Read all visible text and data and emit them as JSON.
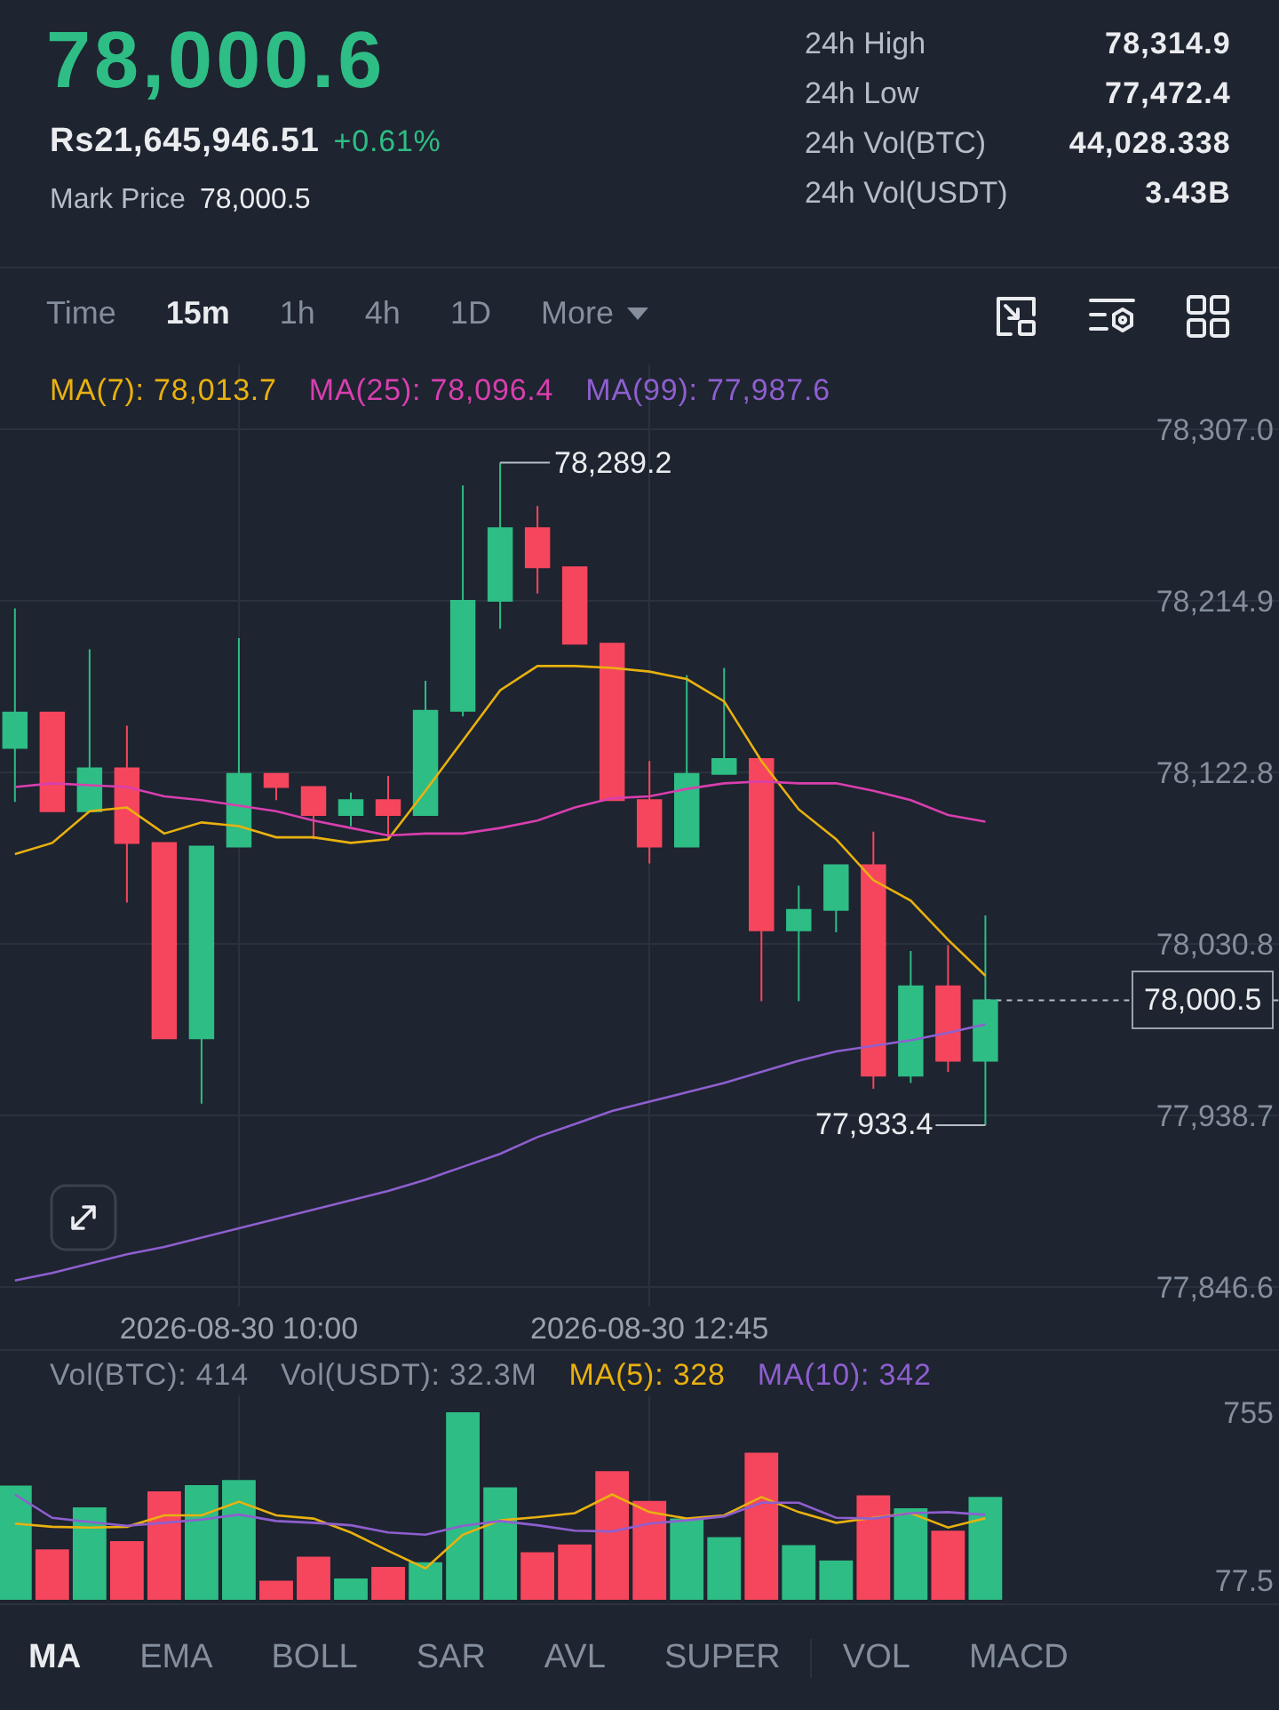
{
  "chart_data": [
    {
      "type": "other",
      "title": "78,000.6",
      "annotations": [
        "Rs21,645,946.51",
        "+0.61%",
        "Mark Price",
        "78,000.5",
        "24h High",
        "78,314.9",
        "24h Low",
        "77,472.4",
        "24h Vol(BTC)",
        "44,028.338",
        "24h Vol(USDT)",
        "3.43B",
        "Time",
        "15m",
        "1h",
        "4h",
        "1D",
        "More"
      ]
    },
    {
      "type": "candlestick",
      "x": [
        "2026-08-30T08:30",
        "2026-08-30T08:45",
        "2026-08-30T09:00",
        "2026-08-30T09:15",
        "2026-08-30T09:30",
        "2026-08-30T09:45",
        "2026-08-30T10:00",
        "2026-08-30T10:15",
        "2026-08-30T10:30",
        "2026-08-30T10:45",
        "2026-08-30T11:00",
        "2026-08-30T11:15",
        "2026-08-30T11:30",
        "2026-08-30T11:45",
        "2026-08-30T12:00",
        "2026-08-30T12:15",
        "2026-08-30T12:30",
        "2026-08-30T12:45",
        "2026-08-30T13:00",
        "2026-08-30T13:15",
        "2026-08-30T13:30",
        "2026-08-30T13:45",
        "2026-08-30T14:00",
        "2026-08-30T14:15",
        "2026-08-30T14:30",
        "2026-08-30T14:45",
        "2026-08-30T15:00"
      ],
      "ohlc": [
        [
          78136,
          78211,
          78107,
          78155
        ],
        [
          78155,
          78155,
          78102,
          78102
        ],
        [
          78102,
          78189,
          78102,
          78125
        ],
        [
          78125,
          78148,
          78053,
          78085
        ],
        [
          78085,
          78085,
          77980,
          77980
        ],
        [
          77980,
          78083,
          77945,
          78083
        ],
        [
          78083,
          78195,
          78083,
          78122
        ],
        [
          78122,
          78122,
          78108,
          78115
        ],
        [
          78115,
          78115,
          78087,
          78100
        ],
        [
          78100,
          78112,
          78094,
          78108
        ],
        [
          78108,
          78121,
          78087,
          78100
        ],
        [
          78100,
          78172,
          78100,
          78156
        ],
        [
          78156,
          78277,
          78153,
          78215
        ],
        [
          78215,
          78289.2,
          78200,
          78254
        ],
        [
          78254,
          78266,
          78219,
          78233
        ],
        [
          78233,
          78233,
          78192,
          78192
        ],
        [
          78192,
          78192,
          78108,
          78108
        ],
        [
          78108,
          78129,
          78074,
          78083
        ],
        [
          78083,
          78175,
          78083,
          78122
        ],
        [
          78122,
          78179,
          78122,
          78130
        ],
        [
          78130,
          78130,
          78000,
          78038
        ],
        [
          78038,
          78062,
          78000,
          78049
        ],
        [
          78049,
          78073,
          78037,
          78073
        ],
        [
          78073,
          78091,
          77953,
          77960
        ],
        [
          77960,
          78027,
          77956,
          78008
        ],
        [
          78008,
          78030,
          77962,
          77968
        ],
        [
          77968,
          78046,
          77933.4,
          78000.5
        ]
      ],
      "colors": [
        "#2ebd85",
        "#f6465d",
        "#2ebd85",
        "#f6465d",
        "#f6465d",
        "#2ebd85",
        "#2ebd85",
        "#f6465d",
        "#f6465d",
        "#2ebd85",
        "#f6465d",
        "#2ebd85",
        "#2ebd85",
        "#2ebd85",
        "#f6465d",
        "#f6465d",
        "#f6465d",
        "#f6465d",
        "#2ebd85",
        "#2ebd85",
        "#f6465d",
        "#2ebd85",
        "#2ebd85",
        "#f6465d",
        "#2ebd85",
        "#f6465d",
        "#2ebd85"
      ],
      "series": [
        {
          "type": "line",
          "name": "MA(7): 78,013.7",
          "color": "#e9b10f",
          "values": [
            78079,
            78085,
            78102,
            78104,
            78090,
            78096,
            78094,
            78088,
            78088,
            78085,
            78087,
            78113,
            78140,
            78167,
            78180,
            78180,
            78179,
            78177,
            78173,
            78161,
            78129,
            78103,
            78087,
            78065,
            78054,
            78033,
            78013.7
          ]
        },
        {
          "type": "line",
          "name": "MA(25): 78,096.4",
          "color": "#d83fae",
          "values": [
            78115,
            78117,
            78116,
            78115,
            78110,
            78108,
            78105,
            78102,
            78097,
            78093,
            78089,
            78090,
            78090,
            78093,
            78097,
            78104,
            78109,
            78110,
            78114,
            78117,
            78118,
            78117,
            78117,
            78113,
            78108,
            78100,
            78096.4
          ]
        },
        {
          "type": "line",
          "name": "MA(99): 77,987.6",
          "color": "#8e5fcf",
          "values": [
            77850,
            77854,
            77859,
            77864,
            77868,
            77873,
            77878,
            77883,
            77888,
            77893,
            77898,
            77904,
            77911,
            77918,
            77927,
            77934,
            77941,
            77946,
            77951,
            77956,
            77962,
            77968,
            77973,
            77976,
            77979,
            77983,
            77987.6
          ]
        }
      ],
      "xlim": [
        "2026-08-30T08:24",
        "2026-08-30T16:58"
      ],
      "xticks": [
        {
          "value": "2026-08-30T10:00",
          "label": "2026-08-30 10:00"
        },
        {
          "value": "2026-08-30T12:45",
          "label": "2026-08-30 12:45"
        }
      ],
      "ylim": [
        77836,
        78342
      ],
      "yticks": [
        {
          "value": 78307.0,
          "label": "78,307.0"
        },
        {
          "value": 78214.9,
          "label": "78,214.9"
        },
        {
          "value": 78122.8,
          "label": "78,122.8"
        },
        {
          "value": 78030.8,
          "label": "78,030.8"
        },
        {
          "value": 77938.7,
          "label": "77,938.7"
        },
        {
          "value": 77846.6,
          "label": "77,846.6"
        }
      ],
      "grid": true,
      "legend": "top left",
      "annotations": [
        {
          "text": "78,289.2",
          "x": "2026-08-30T11:45",
          "y": 78289.2
        },
        {
          "text": "77,933.4",
          "x": "2026-08-30T15:00",
          "y": 77933.4
        }
      ],
      "ref_lines": [
        {
          "axis": "y",
          "value": 78000.5,
          "label": "78,000.5",
          "line_style": "dotted"
        }
      ]
    },
    {
      "type": "bar",
      "x": [
        "2026-08-30T08:30",
        "2026-08-30T08:45",
        "2026-08-30T09:00",
        "2026-08-30T09:15",
        "2026-08-30T09:30",
        "2026-08-30T09:45",
        "2026-08-30T10:00",
        "2026-08-30T10:15",
        "2026-08-30T10:30",
        "2026-08-30T10:45",
        "2026-08-30T11:00",
        "2026-08-30T11:15",
        "2026-08-30T11:30",
        "2026-08-30T11:45",
        "2026-08-30T12:00",
        "2026-08-30T12:15",
        "2026-08-30T12:30",
        "2026-08-30T12:45",
        "2026-08-30T13:00",
        "2026-08-30T13:15",
        "2026-08-30T13:30",
        "2026-08-30T13:45",
        "2026-08-30T14:00",
        "2026-08-30T14:15",
        "2026-08-30T14:30",
        "2026-08-30T14:45",
        "2026-08-30T15:00"
      ],
      "series": [
        {
          "values": [
            460,
            203,
            372,
            236,
            437,
            462,
            482,
            77,
            174,
            86,
            132,
            151,
            755,
            453,
            191,
            223,
            518,
            398,
            327,
            252,
            592,
            220,
            158,
            420,
            369,
            278,
            414
          ],
          "colors": [
            "#2ebd85",
            "#f6465d",
            "#2ebd85",
            "#f6465d",
            "#f6465d",
            "#2ebd85",
            "#2ebd85",
            "#f6465d",
            "#f6465d",
            "#2ebd85",
            "#f6465d",
            "#2ebd85",
            "#2ebd85",
            "#2ebd85",
            "#f6465d",
            "#f6465d",
            "#f6465d",
            "#f6465d",
            "#2ebd85",
            "#2ebd85",
            "#f6465d",
            "#2ebd85",
            "#2ebd85",
            "#f6465d",
            "#2ebd85",
            "#f6465d",
            "#2ebd85"
          ]
        },
        {
          "type": "line",
          "name": "MA(5): 328",
          "color": "#e9b10f",
          "values": [
            307,
            294,
            291,
            294,
            340,
            340,
            395,
            340,
            327,
            271,
            197,
            126,
            262,
            320,
            333,
            349,
            424,
            353,
            327,
            340,
            414,
            353,
            310,
            330,
            349,
            291,
            328
          ]
        },
        {
          "type": "line",
          "name": "MA(10): 342",
          "color": "#8e5fcf",
          "values": [
            424,
            330,
            313,
            298,
            310,
            323,
            343,
            317,
            310,
            300,
            271,
            262,
            298,
            317,
            300,
            278,
            275,
            307,
            320,
            336,
            391,
            391,
            330,
            327,
            349,
            353,
            342
          ]
        }
      ],
      "xlim": [
        "2026-08-30T08:24",
        "2026-08-30T16:58"
      ],
      "xticks": [
        {
          "value": "2026-08-30T10:00",
          "label": null
        },
        {
          "value": "2026-08-30T12:45",
          "label": null
        }
      ],
      "ylim": [
        0,
        823
      ],
      "yticks": [
        755,
        77.5
      ],
      "grid": "x",
      "legend": "top",
      "tick_labels": "y",
      "annotations": [
        "Vol(BTC): 414",
        "Vol(USDT): 32.3M"
      ]
    },
    {
      "type": "other",
      "annotations": [
        "MA",
        "EMA",
        "BOLL",
        "SAR",
        "AVL",
        "SUPER",
        "VOL",
        "MACD"
      ]
    }
  ]
}
